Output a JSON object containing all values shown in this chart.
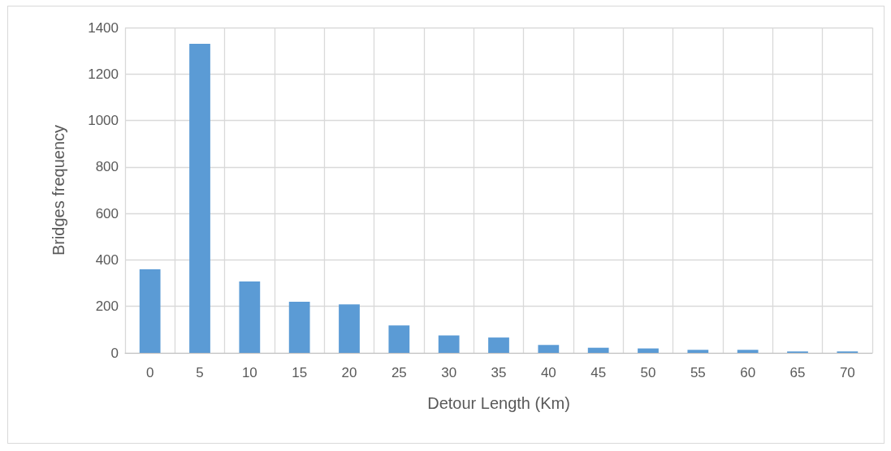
{
  "chart_data": {
    "type": "bar",
    "xlabel": "Detour Length (Km)",
    "ylabel": "Bridges frequency",
    "categories": [
      "0",
      "5",
      "10",
      "15",
      "20",
      "25",
      "30",
      "35",
      "40",
      "45",
      "50",
      "55",
      "60",
      "65",
      "70"
    ],
    "values": [
      360,
      1330,
      307,
      220,
      209,
      118,
      75,
      66,
      34,
      22,
      19,
      13,
      13,
      6,
      6
    ],
    "color": "#5b9bd5",
    "ylim": [
      0,
      1400
    ],
    "yticks": [
      0,
      200,
      400,
      600,
      800,
      1000,
      1200,
      1400
    ],
    "grid": true
  }
}
